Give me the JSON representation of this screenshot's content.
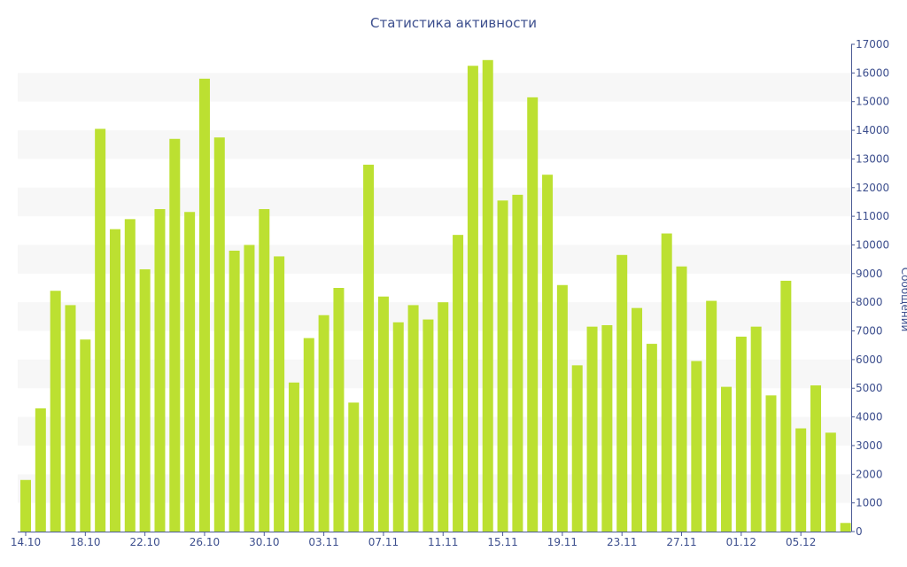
{
  "chart_data": {
    "type": "bar",
    "title": "Статистика активности",
    "ylabel": "Сообщений",
    "xlabel": "",
    "ylim": [
      0,
      17000
    ],
    "yticks": [
      0,
      1000,
      2000,
      3000,
      4000,
      5000,
      6000,
      7000,
      8000,
      9000,
      10000,
      11000,
      12000,
      13000,
      14000,
      15000,
      16000,
      17000
    ],
    "y_axis_side": "right",
    "grid": "alternating horizontal bands",
    "x_tick_labels": [
      {
        "label": "14.10",
        "index": 0
      },
      {
        "label": "18.10",
        "index": 4
      },
      {
        "label": "22.10",
        "index": 8
      },
      {
        "label": "26.10",
        "index": 12
      },
      {
        "label": "30.10",
        "index": 16
      },
      {
        "label": "03.11",
        "index": 20
      },
      {
        "label": "07.11",
        "index": 24
      },
      {
        "label": "11.11",
        "index": 28
      },
      {
        "label": "15.11",
        "index": 32
      },
      {
        "label": "19.11",
        "index": 36
      },
      {
        "label": "23.11",
        "index": 40
      },
      {
        "label": "27.11",
        "index": 44
      },
      {
        "label": "01.12",
        "index": 48
      },
      {
        "label": "05.12",
        "index": 52
      }
    ],
    "values": [
      1800,
      4300,
      8400,
      7900,
      6700,
      14050,
      10550,
      10900,
      9150,
      11250,
      13700,
      11150,
      15800,
      13750,
      9800,
      10000,
      11250,
      9600,
      5200,
      6750,
      7550,
      8500,
      4500,
      12800,
      8200,
      7300,
      7900,
      7400,
      8000,
      10350,
      16250,
      16450,
      11550,
      11750,
      15150,
      12450,
      8600,
      5800,
      7150,
      7200,
      9650,
      7800,
      6550,
      10400,
      9250,
      5950,
      8050,
      5050,
      6800,
      7150,
      4750,
      8750,
      3600,
      5100,
      3450,
      300
    ],
    "colors": {
      "bar": "#bce031",
      "band": "#f7f7f7",
      "text": "#3d4f8e",
      "axis": "#4a5a94"
    }
  }
}
